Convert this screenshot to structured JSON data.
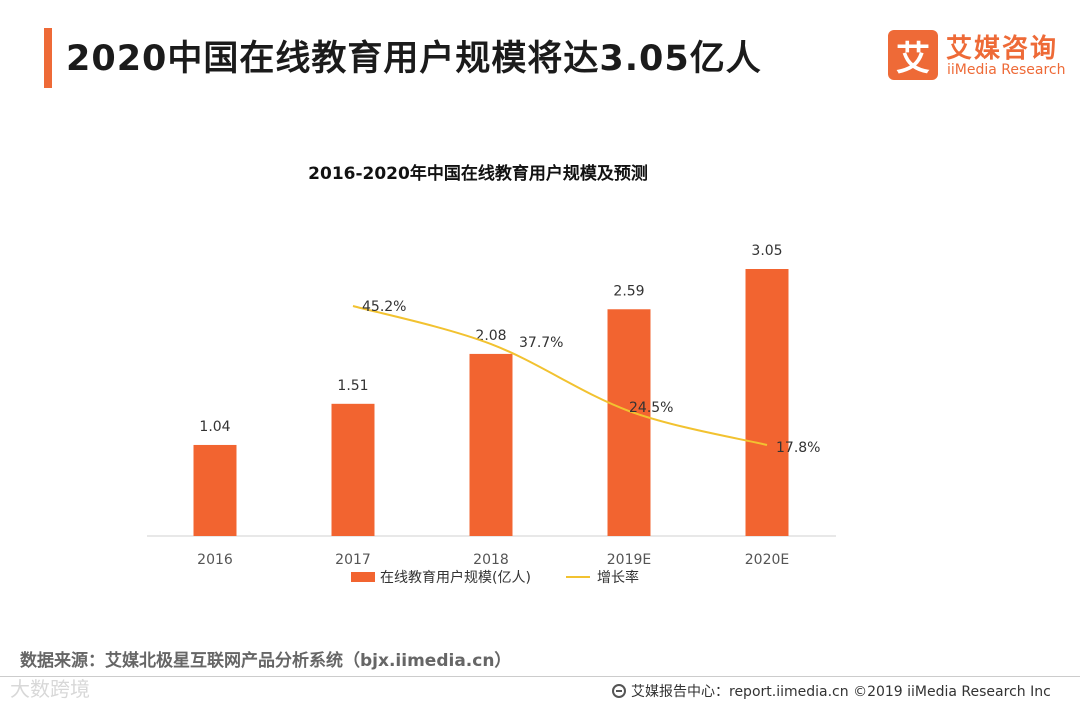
{
  "header": {
    "title": "2020中国在线教育用户规模将达3.05亿人"
  },
  "logo": {
    "mark": "艾",
    "name_cn": "艾媒咨询",
    "name_en": "iiMedia Research",
    "icon": "iimedia-logo-icon"
  },
  "colors": {
    "accent": "#ee6a37",
    "bar": "#f26430",
    "line": "#f2c230"
  },
  "chart_data": {
    "type": "bar",
    "title": "2016-2020年中国在线教育用户规模及预测",
    "categories": [
      "2016",
      "2017",
      "2018",
      "2019E",
      "2020E"
    ],
    "series": [
      {
        "name": "在线教育用户规模(亿人)",
        "type": "bar",
        "values": [
          1.04,
          1.51,
          2.08,
          2.59,
          3.05
        ],
        "labels": [
          "1.04",
          "1.51",
          "2.08",
          "2.59",
          "3.05"
        ]
      },
      {
        "name": "增长率",
        "type": "line",
        "values": [
          null,
          45.2,
          37.7,
          24.5,
          17.8
        ],
        "labels": [
          "",
          "45.2%",
          "37.7%",
          "24.5%",
          "17.8%"
        ]
      }
    ],
    "ylim": [
      0,
      3.05
    ],
    "grid": false,
    "legend": "bottom"
  },
  "footer": {
    "source": "数据来源：艾媒北极星互联网产品分析系统（bjx.iimedia.cn）",
    "watermark": "大数跨境",
    "report": "艾媒报告中心：report.iimedia.cn ©2019 iiMedia Research Inc"
  }
}
